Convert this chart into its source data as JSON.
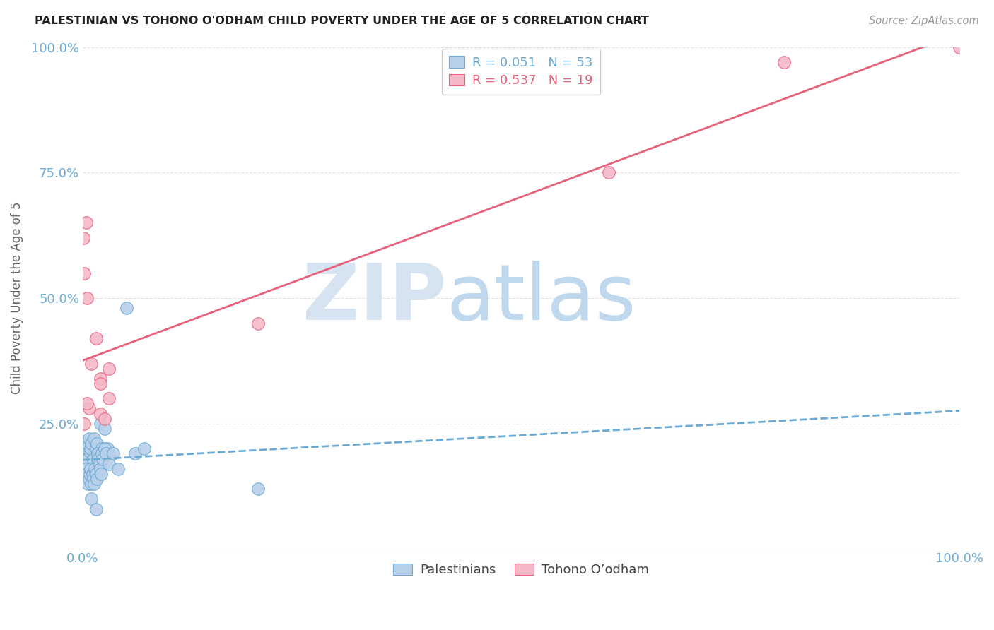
{
  "title": "PALESTINIAN VS TOHONO O'ODHAM CHILD POVERTY UNDER THE AGE OF 5 CORRELATION CHART",
  "source": "Source: ZipAtlas.com",
  "ylabel": "Child Poverty Under the Age of 5",
  "xlim": [
    0,
    1
  ],
  "ylim": [
    0,
    1
  ],
  "xticklabels": [
    "0.0%",
    "",
    "",
    "",
    "100.0%"
  ],
  "yticklabels": [
    "",
    "25.0%",
    "50.0%",
    "75.0%",
    "100.0%"
  ],
  "legend_blue_label": "Palestinians",
  "legend_pink_label": "Tohono O’odham",
  "R_blue": 0.051,
  "N_blue": 53,
  "R_pink": 0.537,
  "N_pink": 19,
  "blue_fill": "#b8d0ea",
  "blue_edge": "#6aaad4",
  "pink_fill": "#f5b8c8",
  "pink_edge": "#e8607a",
  "blue_line": "#6aaad4",
  "pink_line": "#e8607a",
  "background_color": "#ffffff",
  "grid_color": "#e0e0e0",
  "blue_scatter_x": [
    0.002,
    0.003,
    0.004,
    0.005,
    0.006,
    0.007,
    0.008,
    0.009,
    0.01,
    0.012,
    0.013,
    0.015,
    0.016,
    0.017,
    0.018,
    0.02,
    0.022,
    0.025,
    0.028,
    0.03,
    0.002,
    0.003,
    0.004,
    0.005,
    0.006,
    0.007,
    0.008,
    0.009,
    0.01,
    0.011,
    0.012,
    0.013,
    0.014,
    0.015,
    0.016,
    0.017,
    0.018,
    0.019,
    0.02,
    0.021,
    0.022,
    0.023,
    0.025,
    0.027,
    0.03,
    0.035,
    0.04,
    0.05,
    0.06,
    0.07,
    0.2,
    0.01,
    0.015
  ],
  "blue_scatter_y": [
    0.185,
    0.19,
    0.2,
    0.21,
    0.18,
    0.22,
    0.195,
    0.2,
    0.21,
    0.18,
    0.22,
    0.2,
    0.21,
    0.18,
    0.19,
    0.25,
    0.2,
    0.24,
    0.2,
    0.19,
    0.15,
    0.16,
    0.14,
    0.15,
    0.13,
    0.14,
    0.15,
    0.16,
    0.13,
    0.15,
    0.14,
    0.13,
    0.16,
    0.15,
    0.14,
    0.19,
    0.18,
    0.17,
    0.16,
    0.15,
    0.19,
    0.18,
    0.2,
    0.19,
    0.17,
    0.19,
    0.16,
    0.48,
    0.19,
    0.2,
    0.12,
    0.1,
    0.08
  ],
  "pink_scatter_x": [
    0.001,
    0.004,
    0.007,
    0.005,
    0.01,
    0.015,
    0.02,
    0.02,
    0.025,
    0.03,
    0.2,
    0.6,
    0.8,
    0.002,
    0.002,
    0.005,
    0.03,
    0.02,
    1.0
  ],
  "pink_scatter_y": [
    0.62,
    0.65,
    0.28,
    0.5,
    0.37,
    0.42,
    0.34,
    0.27,
    0.26,
    0.36,
    0.45,
    0.75,
    0.97,
    0.55,
    0.25,
    0.29,
    0.3,
    0.33,
    1.0
  ]
}
